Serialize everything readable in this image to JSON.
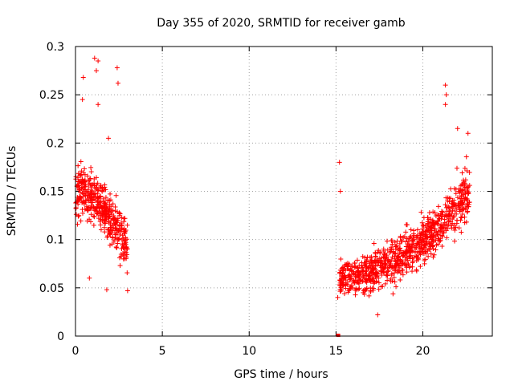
{
  "chart_data": {
    "type": "scatter",
    "title": "Day 355 of 2020, SRMTID for receiver gamb",
    "xlabel": "GPS time / hours",
    "ylabel": "SRMTID / TECUs",
    "xlim": [
      0,
      24
    ],
    "ylim": [
      0,
      0.3
    ],
    "x_ticks": [
      0,
      5,
      10,
      15,
      20
    ],
    "x_tick_labels": [
      "0",
      "5",
      "10",
      "15",
      "20"
    ],
    "y_ticks": [
      0,
      0.05,
      0.1,
      0.15,
      0.2,
      0.25,
      0.3
    ],
    "y_tick_labels": [
      "0",
      "0.05",
      "0.1",
      "0.15",
      "0.2",
      "0.25",
      "0.3"
    ],
    "grid": true,
    "marker": "+",
    "color": "#ff0000",
    "series": [
      {
        "name": "gamb",
        "clusters": [
          {
            "x_range": [
              0.0,
              3.0
            ],
            "point_count": 420,
            "typical_range": [
              0.06,
              0.22
            ],
            "notable_points": [
              {
                "x": 1.1,
                "y": 0.288
              },
              {
                "x": 1.3,
                "y": 0.285
              },
              {
                "x": 1.2,
                "y": 0.275
              },
              {
                "x": 2.4,
                "y": 0.278
              },
              {
                "x": 2.45,
                "y": 0.262
              },
              {
                "x": 0.45,
                "y": 0.268
              },
              {
                "x": 0.4,
                "y": 0.245
              },
              {
                "x": 1.3,
                "y": 0.24
              },
              {
                "x": 1.9,
                "y": 0.205
              },
              {
                "x": 3.0,
                "y": 0.047
              },
              {
                "x": 1.8,
                "y": 0.048
              },
              {
                "x": 0.8,
                "y": 0.06
              }
            ]
          },
          {
            "x_range": [
              15.2,
              22.7
            ],
            "point_count": 880,
            "trend": {
              "start_mean": 0.06,
              "end_mean": 0.15
            },
            "notable_points": [
              {
                "x": 15.2,
                "y": 0.18
              },
              {
                "x": 15.25,
                "y": 0.15
              },
              {
                "x": 21.3,
                "y": 0.26
              },
              {
                "x": 21.35,
                "y": 0.25
              },
              {
                "x": 21.3,
                "y": 0.24
              },
              {
                "x": 22.0,
                "y": 0.215
              },
              {
                "x": 22.6,
                "y": 0.21
              },
              {
                "x": 17.4,
                "y": 0.022
              },
              {
                "x": 15.1,
                "y": 0.04
              }
            ]
          }
        ],
        "extra_points": [
          {
            "x": 15.15,
            "y": 0.0
          }
        ]
      }
    ]
  }
}
